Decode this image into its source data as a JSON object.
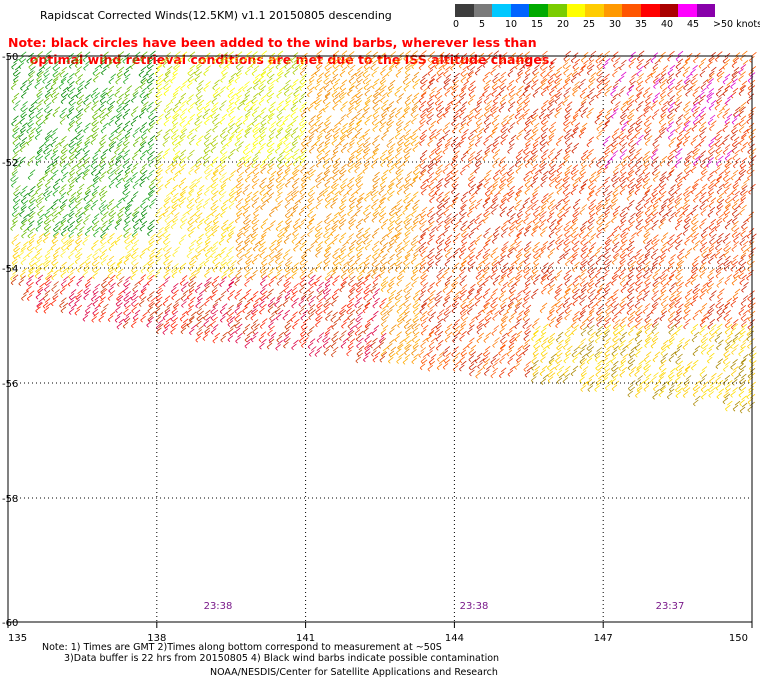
{
  "title": "Rapidscat Corrected Winds(12.5KM) v1.1 20150805 descending",
  "note_lines": [
    "Note: black circles have been added to the wind barbs, wherever less than",
    "     optimal wind retrieval conditions are met due to the ISS altitude changes."
  ],
  "legend": {
    "labels": [
      "0",
      "5",
      "10",
      "15",
      "20",
      "25",
      "30",
      "35",
      "40",
      "45",
      ">50 knots"
    ],
    "colors": [
      "#3c3c3c",
      "#7a7a7a",
      "#00c8ff",
      "#0064ff",
      "#00aa00",
      "#7acc00",
      "#ffff00",
      "#ffcc00",
      "#ff9900",
      "#ff5500",
      "#ff0000",
      "#aa0000",
      "#ff00ff",
      "#8800aa"
    ]
  },
  "axes": {
    "lat_ticks": [
      "-50",
      "-52",
      "-54",
      "-56",
      "-58",
      "-60"
    ],
    "lon_ticks": [
      "135",
      "138",
      "141",
      "144",
      "147",
      "150"
    ]
  },
  "time_labels": [
    "23:38",
    "23:38",
    "23:37"
  ],
  "footnotes": [
    "Note: 1) Times are GMT 2)Times along bottom correspond to measurement at ~50S",
    "3)Data buffer is 22 hrs from 20150805 4) Black wind barbs indicate possible contamination",
    "NOAA/NESDIS/Center for Satellite Applications and Research"
  ]
}
